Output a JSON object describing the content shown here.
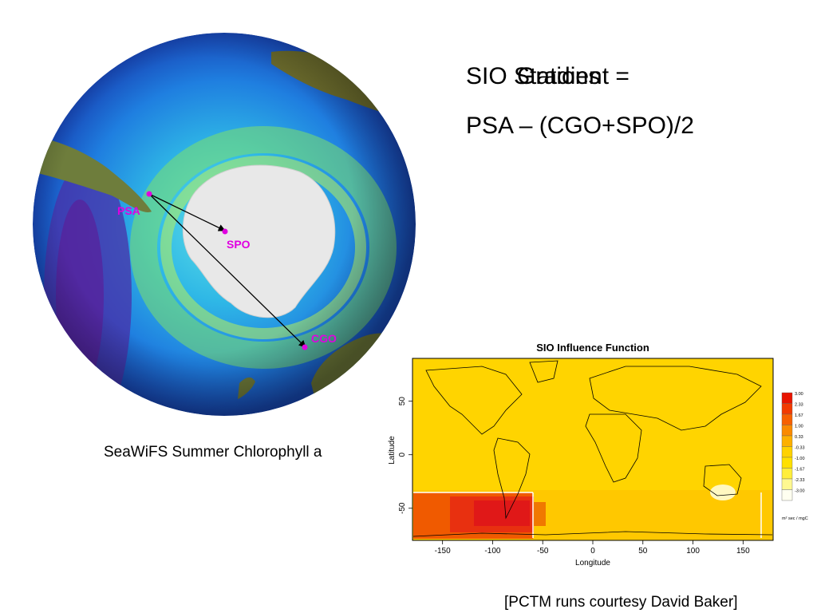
{
  "slide": {
    "title_line1_a": "SIO Stations",
    "title_line1_b": "Gradient =",
    "title_line2": "PSA – (CGO+SPO)/2",
    "left_caption": "SeaWiFS Summer Chlorophyll a",
    "credit": "[PCTM runs courtesy David Baker]"
  },
  "globe": {
    "stations": [
      {
        "name": "PSA",
        "color": "#e000e0"
      },
      {
        "name": "SPO",
        "color": "#e000e0"
      },
      {
        "name": "CGO",
        "color": "#e000e0"
      }
    ]
  },
  "influence_map": {
    "title": "SIO Influence Function",
    "xlabel": "Longitude",
    "ylabel": "Latitude",
    "xticks": [
      "-150",
      "-100",
      "-50",
      "0",
      "50",
      "100",
      "150"
    ],
    "yticks": [
      "50",
      "0",
      "-50"
    ],
    "legend_values": [
      "3.00",
      "2.33",
      "1.67",
      "1.00",
      "0.33",
      "-0.33",
      "-1.00",
      "-1.67",
      "-2.33",
      "-3.00"
    ],
    "legend_colors": [
      "#e81400",
      "#f23a00",
      "#f76000",
      "#fa8a00",
      "#fdb000",
      "#ffd200",
      "#ffe000",
      "#ffee3a",
      "#fff890",
      "#fffff0"
    ],
    "units": "m² sec / mgC"
  }
}
